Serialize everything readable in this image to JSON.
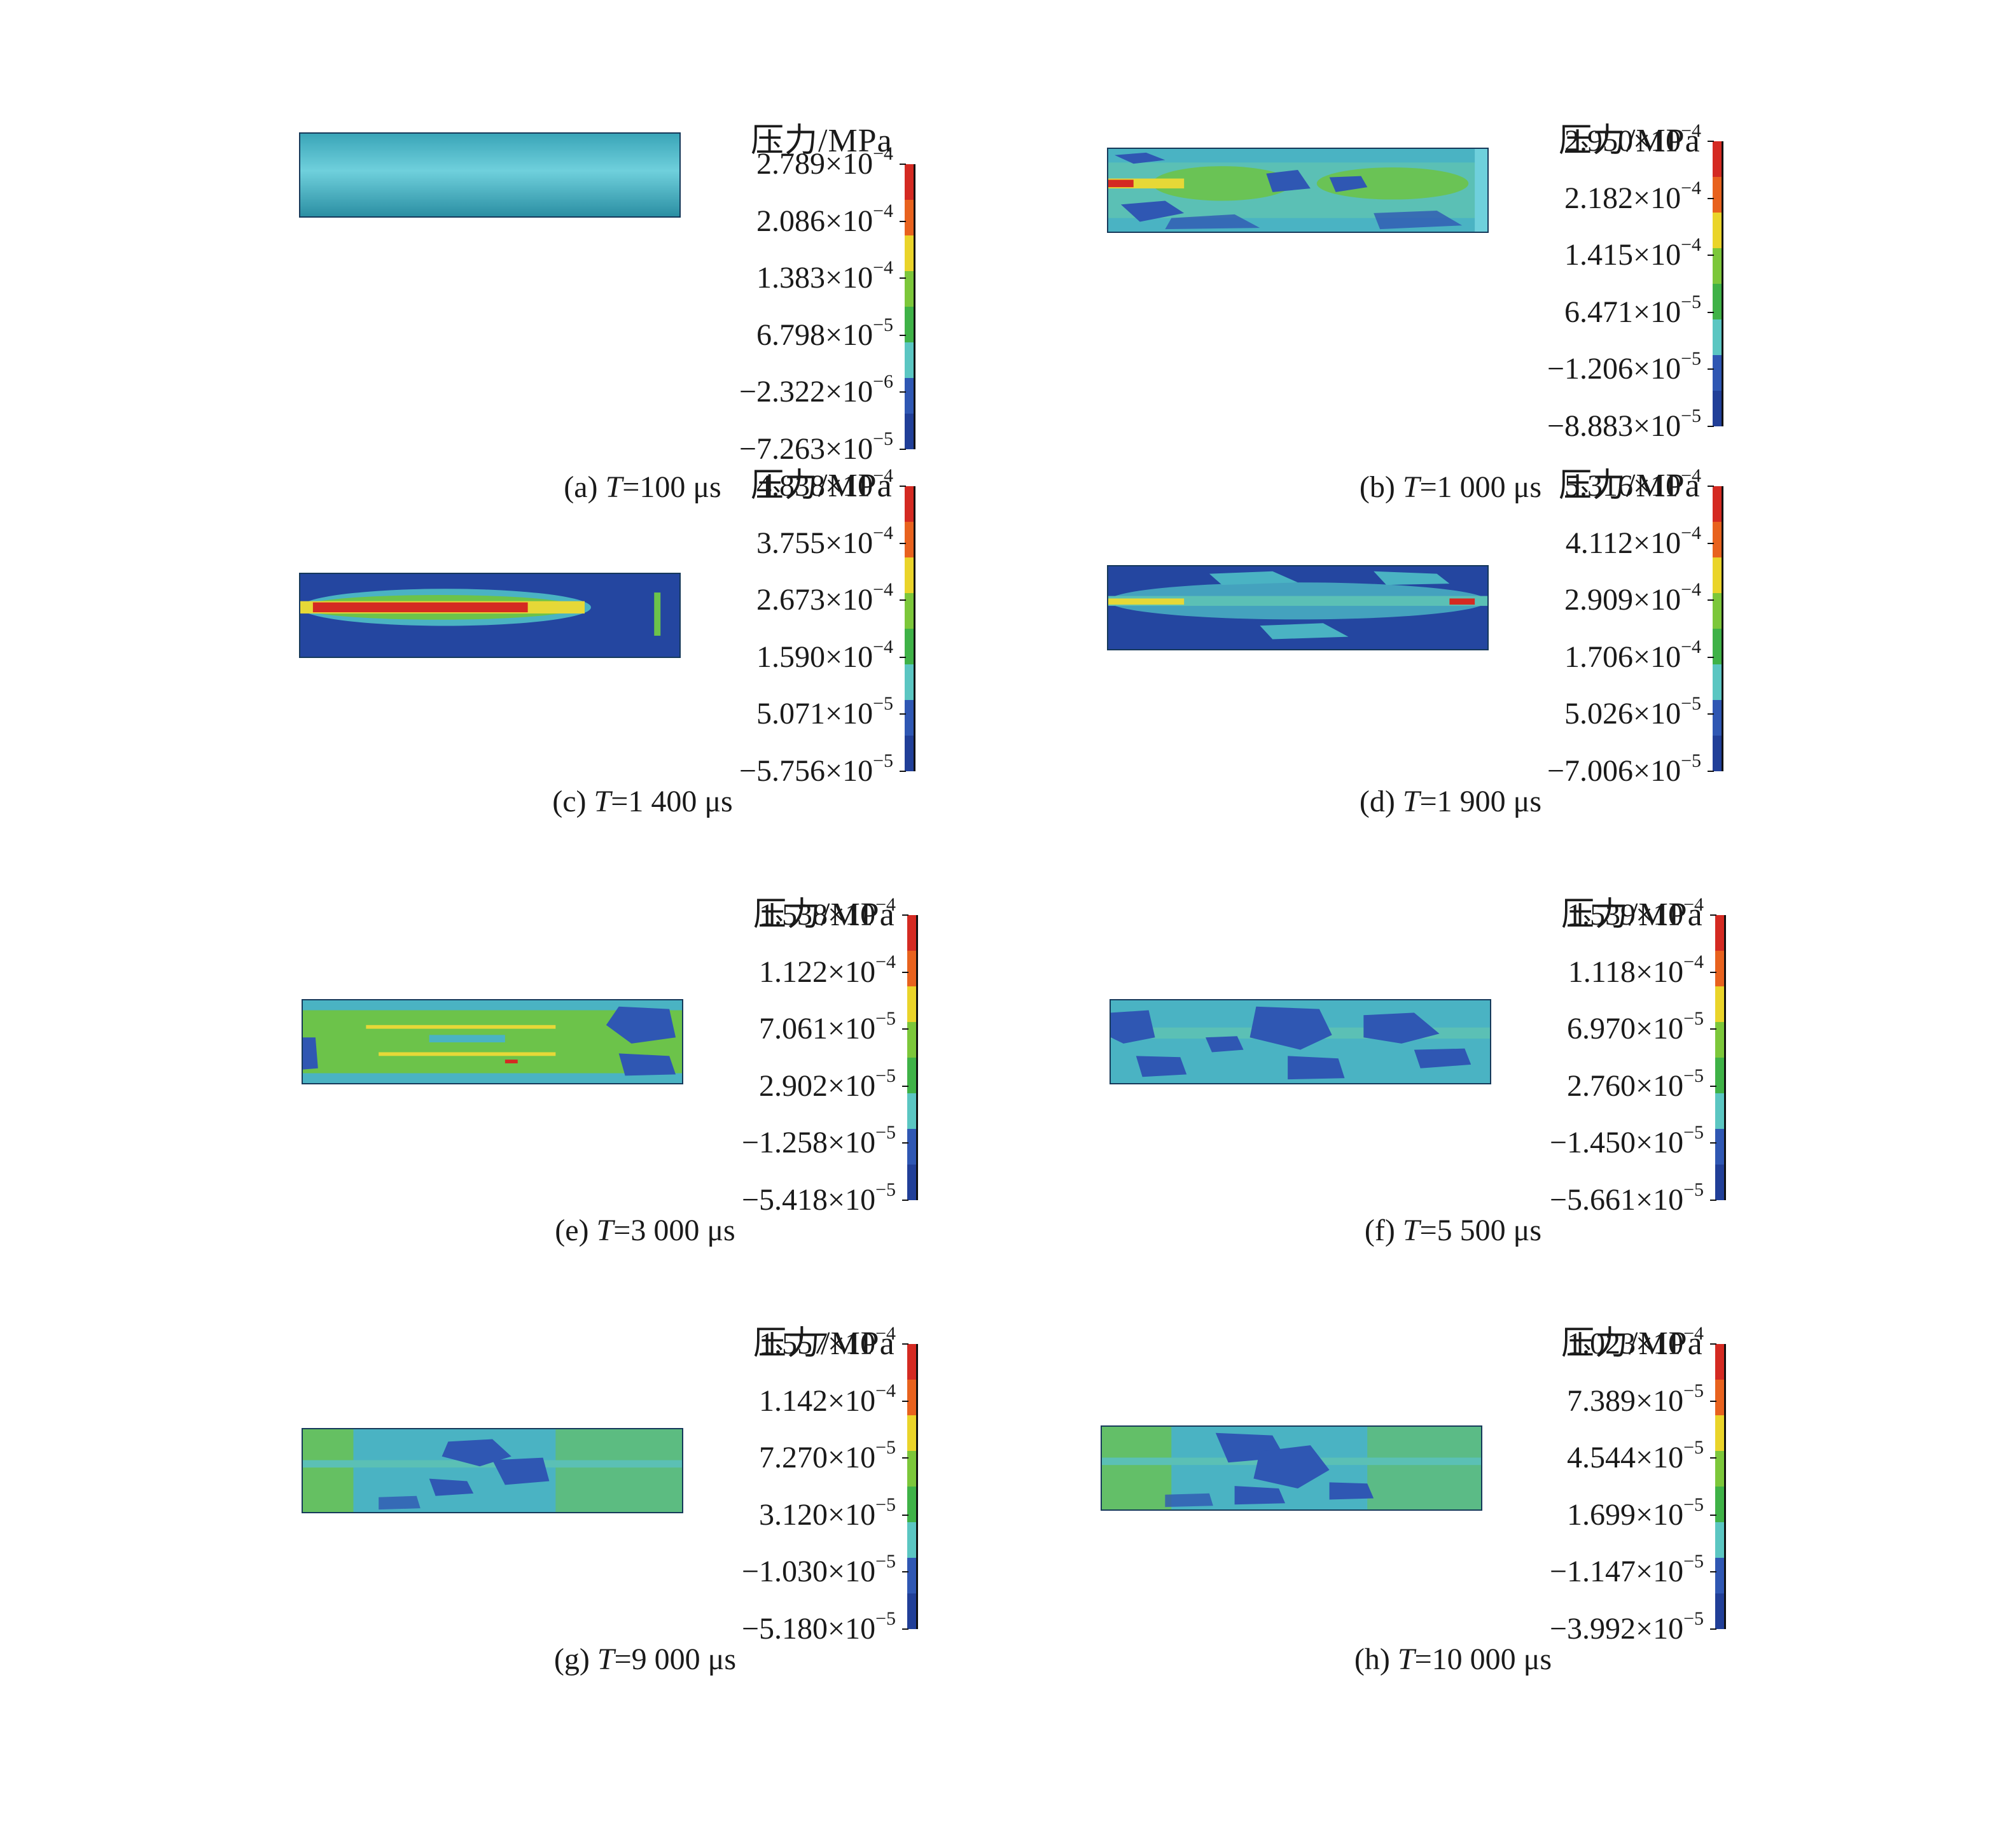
{
  "figure": {
    "colorbar_title": "压力/MPa",
    "colorbar_colors": [
      "#d42a22",
      "#e8621e",
      "#ead42a",
      "#7cc73a",
      "#3fb247",
      "#5bc6c2",
      "#2f57b3",
      "#213f98"
    ],
    "panels": [
      {
        "id": "a",
        "label": "(a)",
        "t_symbol": "T",
        "t_value": "=100 μs",
        "ticks": [
          {
            "m": "2.789",
            "e": "−4"
          },
          {
            "m": "2.086",
            "e": "−4"
          },
          {
            "m": "1.383",
            "e": "−4"
          },
          {
            "m": "6.798",
            "e": "−5"
          },
          {
            "m": "−2.322",
            "e": "−6"
          },
          {
            "m": "−7.263",
            "e": "−5"
          }
        ]
      },
      {
        "id": "b",
        "label": "(b)",
        "t_symbol": "T",
        "t_value": "=1 000 μs",
        "ticks": [
          {
            "m": "2.950",
            "e": "−4"
          },
          {
            "m": "2.182",
            "e": "−4"
          },
          {
            "m": "1.415",
            "e": "−4"
          },
          {
            "m": "6.471",
            "e": "−5"
          },
          {
            "m": "−1.206",
            "e": "−5"
          },
          {
            "m": "−8.883",
            "e": "−5"
          }
        ]
      },
      {
        "id": "c",
        "label": "(c)",
        "t_symbol": "T",
        "t_value": "=1 400 μs",
        "ticks": [
          {
            "m": "4.838",
            "e": "−4"
          },
          {
            "m": "3.755",
            "e": "−4"
          },
          {
            "m": "2.673",
            "e": "−4"
          },
          {
            "m": "1.590",
            "e": "−4"
          },
          {
            "m": "5.071",
            "e": "−5"
          },
          {
            "m": "−5.756",
            "e": "−5"
          }
        ]
      },
      {
        "id": "d",
        "label": "(d)",
        "t_symbol": "T",
        "t_value": "=1 900 μs",
        "ticks": [
          {
            "m": "5.316",
            "e": "−4"
          },
          {
            "m": "4.112",
            "e": "−4"
          },
          {
            "m": "2.909",
            "e": "−4"
          },
          {
            "m": "1.706",
            "e": "−4"
          },
          {
            "m": "5.026",
            "e": "−5"
          },
          {
            "m": "−7.006",
            "e": "−5"
          }
        ]
      },
      {
        "id": "e",
        "label": "(e)",
        "t_symbol": "T",
        "t_value": "=3 000 μs",
        "ticks": [
          {
            "m": "1.538",
            "e": "−4"
          },
          {
            "m": "1.122",
            "e": "−4"
          },
          {
            "m": "7.061",
            "e": "−5"
          },
          {
            "m": "2.902",
            "e": "−5"
          },
          {
            "m": "−1.258",
            "e": "−5"
          },
          {
            "m": "−5.418",
            "e": "−5"
          }
        ]
      },
      {
        "id": "f",
        "label": "(f)",
        "t_symbol": "T",
        "t_value": "=5 500 μs",
        "ticks": [
          {
            "m": "1.539",
            "e": "−4"
          },
          {
            "m": "1.118",
            "e": "−4"
          },
          {
            "m": "6.970",
            "e": "−5"
          },
          {
            "m": "2.760",
            "e": "−5"
          },
          {
            "m": "−1.450",
            "e": "−5"
          },
          {
            "m": "−5.661",
            "e": "−5"
          }
        ]
      },
      {
        "id": "g",
        "label": "(g)",
        "t_symbol": "T",
        "t_value": "=9 000 μs",
        "ticks": [
          {
            "m": "1.557",
            "e": "−4"
          },
          {
            "m": "1.142",
            "e": "−4"
          },
          {
            "m": "7.270",
            "e": "−5"
          },
          {
            "m": "3.120",
            "e": "−5"
          },
          {
            "m": "−1.030",
            "e": "−5"
          },
          {
            "m": "−5.180",
            "e": "−5"
          }
        ]
      },
      {
        "id": "h",
        "label": "(h)",
        "t_symbol": "T",
        "t_value": "=10 000 μs",
        "ticks": [
          {
            "m": "1.023",
            "e": "−4"
          },
          {
            "m": "7.389",
            "e": "−5"
          },
          {
            "m": "4.544",
            "e": "−5"
          },
          {
            "m": "1.699",
            "e": "−5"
          },
          {
            "m": "−1.147",
            "e": "−5"
          },
          {
            "m": "−3.992",
            "e": "−5"
          }
        ]
      }
    ]
  }
}
